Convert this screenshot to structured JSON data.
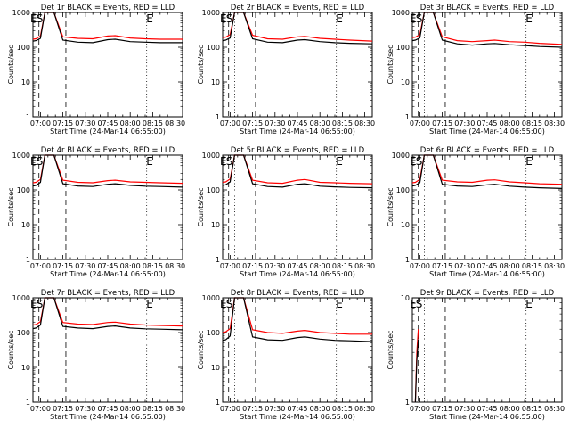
{
  "page": {
    "title": "Detector count rate panels"
  },
  "chart_data": [
    {
      "type": "line",
      "title": "Det 1r BLACK = Events, RED = LLD",
      "xlabel": "Start Time (24-Mar-14 06:55:00)",
      "ylabel": "Counts/sec",
      "y_scale": "log",
      "ylim": [
        1,
        1000
      ],
      "x_range_minutes": [
        0,
        100
      ],
      "x_tick_labels": [
        "07:00",
        "07:15",
        "07:30",
        "07:45",
        "08:00",
        "08:15",
        "08:30"
      ],
      "y_tick_labels": [
        "1",
        "10",
        "100",
        "1000"
      ],
      "markers": [
        {
          "label": "E",
          "x": 0.5
        },
        {
          "label": "S",
          "x": 4.5
        },
        {
          "label": "E",
          "x": 78
        }
      ],
      "series": [
        {
          "color": "#ff0000",
          "x": [
            0,
            2,
            5,
            8,
            11,
            14,
            20,
            30,
            40,
            50,
            55,
            65,
            75,
            85,
            100
          ],
          "values": [
            170,
            175,
            210,
            1000,
            1000,
            1000,
            200,
            180,
            175,
            210,
            215,
            185,
            175,
            170,
            170
          ]
        },
        {
          "color": "#000000",
          "x": [
            0,
            2,
            5,
            8,
            11,
            14,
            20,
            30,
            40,
            50,
            55,
            65,
            75,
            85,
            100
          ],
          "values": [
            150,
            155,
            180,
            1000,
            1000,
            1000,
            160,
            140,
            135,
            165,
            170,
            145,
            140,
            135,
            135
          ]
        }
      ],
      "vertical_lines": [
        {
          "x": 4,
          "style": "dashed"
        },
        {
          "x": 8,
          "style": "dotted"
        },
        {
          "x": 22,
          "style": "dashed"
        },
        {
          "x": 76,
          "style": "dotted"
        }
      ]
    },
    {
      "type": "line",
      "title": "Det 2r BLACK = Events, RED = LLD",
      "xlabel": "Start Time (24-Mar-14 06:55:00)",
      "ylabel": "Counts/sec",
      "y_scale": "log",
      "ylim": [
        1,
        1000
      ],
      "x_range_minutes": [
        0,
        100
      ],
      "x_tick_labels": [
        "07:00",
        "07:15",
        "07:30",
        "07:45",
        "08:00",
        "08:15",
        "08:30"
      ],
      "y_tick_labels": [
        "1",
        "10",
        "100",
        "1000"
      ],
      "markers": [
        {
          "label": "E",
          "x": 0.5
        },
        {
          "label": "S",
          "x": 4.5
        },
        {
          "label": "E",
          "x": 78
        }
      ],
      "series": [
        {
          "color": "#ff0000",
          "x": [
            0,
            2,
            5,
            8,
            11,
            14,
            20,
            30,
            40,
            50,
            55,
            65,
            75,
            85,
            100
          ],
          "values": [
            190,
            195,
            230,
            1000,
            1000,
            1000,
            220,
            175,
            170,
            200,
            205,
            180,
            170,
            160,
            150
          ]
        },
        {
          "color": "#000000",
          "x": [
            0,
            2,
            5,
            8,
            11,
            14,
            20,
            30,
            40,
            50,
            55,
            65,
            75,
            85,
            100
          ],
          "values": [
            155,
            160,
            185,
            1000,
            1000,
            1000,
            175,
            140,
            135,
            160,
            165,
            145,
            135,
            130,
            125
          ]
        }
      ],
      "vertical_lines": [
        {
          "x": 4,
          "style": "dashed"
        },
        {
          "x": 8,
          "style": "dotted"
        },
        {
          "x": 22,
          "style": "dashed"
        },
        {
          "x": 76,
          "style": "dotted"
        }
      ]
    },
    {
      "type": "line",
      "title": "Det 3r BLACK = Events, RED = LLD",
      "xlabel": "Start Time (24-Mar-14 06:55:00)",
      "ylabel": "Counts/sec",
      "y_scale": "log",
      "ylim": [
        1,
        1000
      ],
      "x_range_minutes": [
        0,
        100
      ],
      "x_tick_labels": [
        "07:00",
        "07:15",
        "07:30",
        "07:45",
        "08:00",
        "08:15",
        "08:30"
      ],
      "y_tick_labels": [
        "1",
        "10",
        "100",
        "1000"
      ],
      "markers": [
        {
          "label": "E",
          "x": 0.5
        },
        {
          "label": "S",
          "x": 4.5
        },
        {
          "label": "E",
          "x": 78
        }
      ],
      "series": [
        {
          "color": "#ff0000",
          "x": [
            0,
            2,
            5,
            8,
            11,
            14,
            20,
            30,
            40,
            50,
            55,
            65,
            75,
            85,
            100
          ],
          "values": [
            190,
            195,
            230,
            1000,
            1000,
            1000,
            200,
            155,
            145,
            155,
            160,
            145,
            140,
            130,
            120
          ]
        },
        {
          "color": "#000000",
          "x": [
            0,
            2,
            5,
            8,
            11,
            14,
            20,
            30,
            40,
            50,
            55,
            65,
            75,
            85,
            100
          ],
          "values": [
            155,
            160,
            185,
            1000,
            1000,
            1000,
            160,
            125,
            115,
            125,
            128,
            118,
            112,
            105,
            100
          ]
        }
      ],
      "vertical_lines": [
        {
          "x": 4,
          "style": "dashed"
        },
        {
          "x": 8,
          "style": "dotted"
        },
        {
          "x": 22,
          "style": "dashed"
        },
        {
          "x": 76,
          "style": "dotted"
        }
      ]
    },
    {
      "type": "line",
      "title": "Det 4r BLACK = Events, RED = LLD",
      "xlabel": "Start Time (24-Mar-14 06:55:00)",
      "ylabel": "Counts/sec",
      "y_scale": "log",
      "ylim": [
        1,
        1000
      ],
      "x_range_minutes": [
        0,
        100
      ],
      "x_tick_labels": [
        "07:00",
        "07:15",
        "07:30",
        "07:45",
        "08:00",
        "08:15",
        "08:30"
      ],
      "y_tick_labels": [
        "1",
        "10",
        "100",
        "1000"
      ],
      "markers": [
        {
          "label": "E",
          "x": 0.5
        },
        {
          "label": "S",
          "x": 4.5
        },
        {
          "label": "E",
          "x": 78
        }
      ],
      "series": [
        {
          "color": "#ff0000",
          "x": [
            0,
            2,
            5,
            8,
            11,
            14,
            20,
            30,
            40,
            50,
            55,
            65,
            75,
            85,
            100
          ],
          "values": [
            160,
            165,
            200,
            1000,
            1000,
            1000,
            190,
            165,
            160,
            185,
            190,
            170,
            165,
            160,
            155
          ]
        },
        {
          "color": "#000000",
          "x": [
            0,
            2,
            5,
            8,
            11,
            14,
            20,
            30,
            40,
            50,
            55,
            65,
            75,
            85,
            100
          ],
          "values": [
            130,
            135,
            165,
            1000,
            1000,
            1000,
            150,
            130,
            125,
            145,
            150,
            135,
            128,
            125,
            120
          ]
        }
      ],
      "vertical_lines": [
        {
          "x": 4,
          "style": "dashed"
        },
        {
          "x": 8,
          "style": "dotted"
        },
        {
          "x": 22,
          "style": "dashed"
        },
        {
          "x": 76,
          "style": "dotted"
        }
      ]
    },
    {
      "type": "line",
      "title": "Det 5r BLACK = Events, RED = LLD",
      "xlabel": "Start Time (24-Mar-14 06:55:00)",
      "ylabel": "Counts/sec",
      "y_scale": "log",
      "ylim": [
        1,
        1000
      ],
      "x_range_minutes": [
        0,
        100
      ],
      "x_tick_labels": [
        "07:00",
        "07:15",
        "07:30",
        "07:45",
        "08:00",
        "08:15",
        "08:30"
      ],
      "y_tick_labels": [
        "1",
        "10",
        "100",
        "1000"
      ],
      "markers": [
        {
          "label": "E",
          "x": 0.5
        },
        {
          "label": "S",
          "x": 4.5
        },
        {
          "label": "E",
          "x": 78
        }
      ],
      "series": [
        {
          "color": "#ff0000",
          "x": [
            0,
            2,
            5,
            8,
            11,
            14,
            20,
            30,
            40,
            50,
            55,
            65,
            75,
            85,
            100
          ],
          "values": [
            165,
            170,
            205,
            1000,
            1000,
            1000,
            190,
            160,
            155,
            190,
            200,
            165,
            160,
            155,
            150
          ]
        },
        {
          "color": "#000000",
          "x": [
            0,
            2,
            5,
            8,
            11,
            14,
            20,
            30,
            40,
            50,
            55,
            65,
            75,
            85,
            100
          ],
          "values": [
            135,
            140,
            170,
            1000,
            1000,
            1000,
            150,
            125,
            120,
            145,
            150,
            128,
            122,
            118,
            115
          ]
        }
      ],
      "vertical_lines": [
        {
          "x": 4,
          "style": "dashed"
        },
        {
          "x": 8,
          "style": "dotted"
        },
        {
          "x": 22,
          "style": "dashed"
        },
        {
          "x": 76,
          "style": "dotted"
        }
      ]
    },
    {
      "type": "line",
      "title": "Det 6r BLACK = Events, RED = LLD",
      "xlabel": "Start Time (24-Mar-14 06:55:00)",
      "ylabel": "Counts/sec",
      "y_scale": "log",
      "ylim": [
        1,
        1000
      ],
      "x_range_minutes": [
        0,
        100
      ],
      "x_tick_labels": [
        "07:00",
        "07:15",
        "07:30",
        "07:45",
        "08:00",
        "08:15",
        "08:30"
      ],
      "y_tick_labels": [
        "1",
        "10",
        "100",
        "1000"
      ],
      "markers": [
        {
          "label": "E",
          "x": 0.5
        },
        {
          "label": "S",
          "x": 4.5
        },
        {
          "label": "E",
          "x": 78
        }
      ],
      "series": [
        {
          "color": "#ff0000",
          "x": [
            0,
            2,
            5,
            8,
            11,
            14,
            20,
            30,
            40,
            50,
            55,
            65,
            75,
            85,
            100
          ],
          "values": [
            160,
            165,
            200,
            1000,
            1000,
            1000,
            190,
            170,
            165,
            190,
            195,
            170,
            160,
            150,
            145
          ]
        },
        {
          "color": "#000000",
          "x": [
            0,
            2,
            5,
            8,
            11,
            14,
            20,
            30,
            40,
            50,
            55,
            65,
            75,
            85,
            100
          ],
          "values": [
            130,
            135,
            160,
            1000,
            1000,
            1000,
            145,
            130,
            125,
            140,
            145,
            128,
            120,
            115,
            110
          ]
        }
      ],
      "vertical_lines": [
        {
          "x": 4,
          "style": "dashed"
        },
        {
          "x": 8,
          "style": "dotted"
        },
        {
          "x": 22,
          "style": "dashed"
        },
        {
          "x": 76,
          "style": "dotted"
        }
      ]
    },
    {
      "type": "line",
      "title": "Det 7r BLACK = Events, RED = LLD",
      "xlabel": "Start Time (24-Mar-14 06:55:00)",
      "ylabel": "Counts/sec",
      "y_scale": "log",
      "ylim": [
        1,
        1000
      ],
      "x_range_minutes": [
        0,
        100
      ],
      "x_tick_labels": [
        "07:00",
        "07:15",
        "07:30",
        "07:45",
        "08:00",
        "08:15",
        "08:30"
      ],
      "y_tick_labels": [
        "1",
        "10",
        "100",
        "1000"
      ],
      "markers": [
        {
          "label": "E",
          "x": 0.5
        },
        {
          "label": "S",
          "x": 4.5
        },
        {
          "label": "E",
          "x": 78
        }
      ],
      "series": [
        {
          "color": "#ff0000",
          "x": [
            0,
            2,
            5,
            8,
            11,
            14,
            20,
            30,
            40,
            50,
            55,
            65,
            75,
            85,
            100
          ],
          "values": [
            165,
            170,
            205,
            1000,
            1000,
            1000,
            195,
            175,
            170,
            195,
            200,
            175,
            165,
            160,
            155
          ]
        },
        {
          "color": "#000000",
          "x": [
            0,
            2,
            5,
            8,
            11,
            14,
            20,
            30,
            40,
            50,
            55,
            65,
            75,
            85,
            100
          ],
          "values": [
            130,
            135,
            165,
            1000,
            1000,
            1000,
            150,
            135,
            130,
            150,
            155,
            135,
            128,
            125,
            120
          ]
        }
      ],
      "vertical_lines": [
        {
          "x": 4,
          "style": "dashed"
        },
        {
          "x": 8,
          "style": "dotted"
        },
        {
          "x": 22,
          "style": "dashed"
        },
        {
          "x": 76,
          "style": "dotted"
        }
      ]
    },
    {
      "type": "line",
      "title": "Det 8r BLACK = Events, RED = LLD",
      "xlabel": "Start Time (24-Mar-14 06:55:00)",
      "ylabel": "Counts/sec",
      "y_scale": "log",
      "ylim": [
        1,
        1000
      ],
      "x_range_minutes": [
        0,
        100
      ],
      "x_tick_labels": [
        "07:00",
        "07:15",
        "07:30",
        "07:45",
        "08:00",
        "08:15",
        "08:30"
      ],
      "y_tick_labels": [
        "1",
        "10",
        "100",
        "1000"
      ],
      "markers": [
        {
          "label": "E",
          "x": 0.5
        },
        {
          "label": "S",
          "x": 4.5
        },
        {
          "label": "E",
          "x": 78
        }
      ],
      "series": [
        {
          "color": "#ff0000",
          "x": [
            0,
            2,
            5,
            8,
            11,
            14,
            20,
            30,
            40,
            50,
            55,
            65,
            75,
            85,
            100
          ],
          "values": [
            100,
            105,
            130,
            1000,
            1000,
            1000,
            120,
            100,
            95,
            110,
            115,
            100,
            95,
            90,
            90
          ]
        },
        {
          "color": "#000000",
          "x": [
            0,
            2,
            5,
            8,
            11,
            14,
            20,
            30,
            40,
            50,
            55,
            65,
            75,
            85,
            100
          ],
          "values": [
            60,
            62,
            80,
            1000,
            1000,
            1000,
            75,
            62,
            60,
            72,
            75,
            65,
            60,
            58,
            55
          ]
        }
      ],
      "vertical_lines": [
        {
          "x": 4,
          "style": "dashed"
        },
        {
          "x": 8,
          "style": "dotted"
        },
        {
          "x": 22,
          "style": "dashed"
        },
        {
          "x": 76,
          "style": "dotted"
        }
      ]
    },
    {
      "type": "line",
      "title": "Det 9r BLACK = Events, RED = LLD",
      "xlabel": "Start Time (24-Mar-14 06:55:00)",
      "ylabel": "Counts/sec",
      "y_scale": "log",
      "ylim": [
        1,
        10
      ],
      "x_range_minutes": [
        0,
        100
      ],
      "x_tick_labels": [
        "07:00",
        "07:15",
        "07:30",
        "07:45",
        "08:00",
        "08:15",
        "08:30"
      ],
      "y_tick_labels": [
        "1",
        "10"
      ],
      "markers": [
        {
          "label": "E",
          "x": 0.5
        },
        {
          "label": "S",
          "x": 4.5
        },
        {
          "label": "E",
          "x": 78
        }
      ],
      "series": [
        {
          "color": "#ff0000",
          "x": [
            2,
            3,
            4
          ],
          "values": [
            1,
            3,
            5
          ]
        },
        {
          "color": "#000000",
          "x": [
            2,
            3,
            4
          ],
          "values": [
            1,
            2.5,
            4
          ]
        }
      ],
      "vertical_lines": [
        {
          "x": 4,
          "style": "dashed"
        },
        {
          "x": 8,
          "style": "dotted"
        },
        {
          "x": 22,
          "style": "dashed"
        },
        {
          "x": 76,
          "style": "dotted"
        }
      ]
    }
  ]
}
